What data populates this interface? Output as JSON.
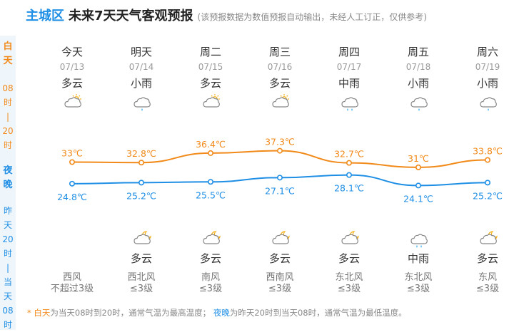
{
  "header": {
    "region": "主城区",
    "title": "未来7天天气客观预报",
    "note": "(该预报数据为数值预报自动输出，未经人工订正，仅供参考)"
  },
  "sidebar": {
    "day_label_1": "白",
    "day_label_2": "天",
    "day_time": [
      "08",
      "时",
      "|",
      "20",
      "时"
    ],
    "night_label_1": "夜",
    "night_label_2": "晚",
    "night_time": [
      "昨",
      "天",
      "20",
      "时",
      "|",
      "当",
      "天",
      "08",
      "时"
    ]
  },
  "days": [
    {
      "name": "今天",
      "date": "07/13",
      "day_weather": "多云",
      "day_icon": "partly-cloudy-icon",
      "high": "33℃",
      "low": "24.8℃",
      "night_icon": "",
      "night_weather": "",
      "wind_dir": "西风",
      "wind_level": "不超过3级"
    },
    {
      "name": "明天",
      "date": "07/14",
      "day_weather": "小雨",
      "day_icon": "light-rain-icon",
      "high": "32.8℃",
      "low": "25.2℃",
      "night_icon": "partly-cloudy-night-icon",
      "night_weather": "多云",
      "wind_dir": "西北风",
      "wind_level": "≤3级"
    },
    {
      "name": "周二",
      "date": "07/15",
      "day_weather": "多云",
      "day_icon": "partly-cloudy-icon",
      "high": "36.4℃",
      "low": "25.5℃",
      "night_icon": "partly-cloudy-night-icon",
      "night_weather": "多云",
      "wind_dir": "南风",
      "wind_level": "≤3级"
    },
    {
      "name": "周三",
      "date": "07/16",
      "day_weather": "多云",
      "day_icon": "partly-cloudy-icon",
      "high": "37.3℃",
      "low": "27.1℃",
      "night_icon": "partly-cloudy-night-icon",
      "night_weather": "多云",
      "wind_dir": "西南风",
      "wind_level": "≤3级"
    },
    {
      "name": "周四",
      "date": "07/17",
      "day_weather": "中雨",
      "day_icon": "moderate-rain-icon",
      "high": "32.7℃",
      "low": "28.1℃",
      "night_icon": "partly-cloudy-night-icon",
      "night_weather": "多云",
      "wind_dir": "东北风",
      "wind_level": "≤3级"
    },
    {
      "name": "周五",
      "date": "07/18",
      "day_weather": "小雨",
      "day_icon": "light-rain-icon",
      "high": "31℃",
      "low": "24.1℃",
      "night_icon": "moderate-rain-icon",
      "night_weather": "中雨",
      "wind_dir": "东北风",
      "wind_level": "≤3级"
    },
    {
      "name": "周六",
      "date": "07/19",
      "day_weather": "小雨",
      "day_icon": "light-rain-icon",
      "high": "33.8℃",
      "low": "25.2℃",
      "night_icon": "partly-cloudy-night-icon",
      "night_weather": "多云",
      "wind_dir": "东风",
      "wind_level": "≤3级"
    }
  ],
  "chart_data": {
    "type": "line",
    "categories": [
      "07/13",
      "07/14",
      "07/15",
      "07/16",
      "07/17",
      "07/18",
      "07/19"
    ],
    "series": [
      {
        "values": [
          33,
          32.8,
          36.4,
          37.3,
          32.7,
          31,
          33.8
        ],
        "color": "#f28a1a"
      },
      {
        "values": [
          24.8,
          25.2,
          25.5,
          27.1,
          28.1,
          24.1,
          25.2
        ],
        "color": "#1f8fe5"
      }
    ],
    "labels_high": [
      "33℃",
      "32.8℃",
      "36.4℃",
      "37.3℃",
      "32.7℃",
      "31℃",
      "33.8℃"
    ],
    "labels_low": [
      "24.8℃",
      "25.2℃",
      "25.5℃",
      "27.1℃",
      "28.1℃",
      "24.1℃",
      "25.2℃"
    ]
  },
  "footer": {
    "star": "* ",
    "day_word": "白天",
    "day_text": "为当天08时到20时，通常气温为最高温度；",
    "night_word": "夜晚",
    "night_text": "为昨天20时到当天08时，通常气温为最低温度。"
  },
  "colors": {
    "accent": "#1f8fe5",
    "day": "#f28a1a",
    "night": "#1f8fe5"
  }
}
